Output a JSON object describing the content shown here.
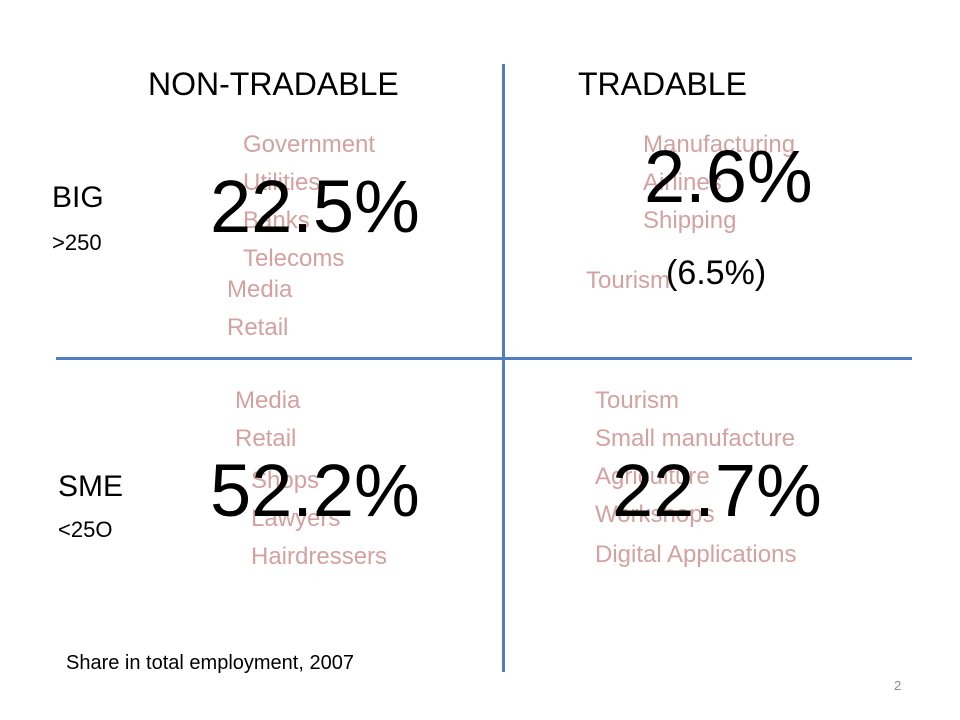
{
  "columns": {
    "left": "NON-TRADABLE",
    "right": "TRADABLE"
  },
  "rows": {
    "top": {
      "label": "BIG",
      "sub": ">250"
    },
    "bottom": {
      "label": "SME",
      "sub": "<25O"
    }
  },
  "quadrants": {
    "big_nontradable": {
      "value": "22.5%",
      "sectors": [
        "Government",
        "Utilities",
        "Banks",
        "Telecoms",
        "Media",
        "Retail"
      ]
    },
    "big_tradable": {
      "value": "2.6%",
      "secondary": "(6.5%)",
      "sectors": [
        "Manufacturing",
        "Airlines",
        "Shipping",
        "Tourism"
      ]
    },
    "sme_nontradable": {
      "value": "52.2%",
      "sectors": [
        "Media",
        "Retail",
        "Shops",
        "Lawyers",
        "Hairdressers"
      ]
    },
    "sme_tradable": {
      "value": "22.7%",
      "sectors": [
        "Tourism",
        "Small manufacture",
        "Agriculture",
        "Workshops",
        "Digital Applications"
      ]
    }
  },
  "colors": {
    "axis": "#4f7fbf",
    "sector_text": "#d4a1a1"
  },
  "footer": "Share in total employment, 2007",
  "page_number": "2"
}
